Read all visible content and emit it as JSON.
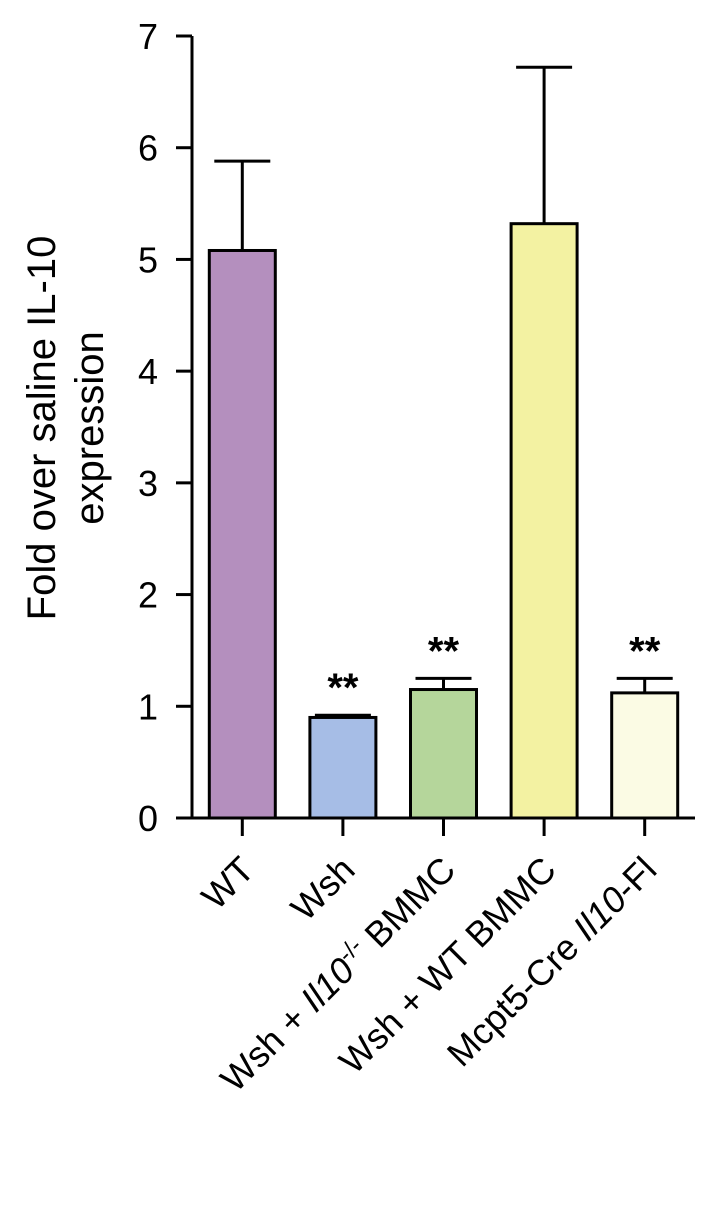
{
  "chart_data": {
    "type": "bar",
    "categories": [
      {
        "parts": [
          {
            "t": "WT"
          }
        ]
      },
      {
        "parts": [
          {
            "t": "Wsh"
          }
        ]
      },
      {
        "parts": [
          {
            "t": "Wsh + "
          },
          {
            "t": "Il10",
            "italic": true
          },
          {
            "t": "-/-",
            "sup": true
          },
          {
            "t": " BMMC"
          }
        ]
      },
      {
        "parts": [
          {
            "t": "Wsh + WT BMMC"
          }
        ]
      },
      {
        "parts": [
          {
            "t": "Mcpt5-Cre "
          },
          {
            "t": "Il10",
            "italic": true
          },
          {
            "t": "-Fl"
          }
        ]
      }
    ],
    "values": [
      5.08,
      0.9,
      1.15,
      5.32,
      1.12
    ],
    "errors": [
      0.8,
      0.02,
      0.1,
      1.4,
      0.13
    ],
    "significance": [
      "",
      "**",
      "**",
      "",
      "**"
    ],
    "colors": [
      "#b48fbe",
      "#a6bde6",
      "#b5d69b",
      "#f3f2a2",
      "#fbfbe4"
    ],
    "ylabel_lines": [
      "Fold over saline IL-10",
      "expression"
    ],
    "ylim": [
      0,
      7
    ],
    "yticks": [
      "0",
      "1",
      "2",
      "3",
      "4",
      "5",
      "6",
      "7"
    ]
  }
}
